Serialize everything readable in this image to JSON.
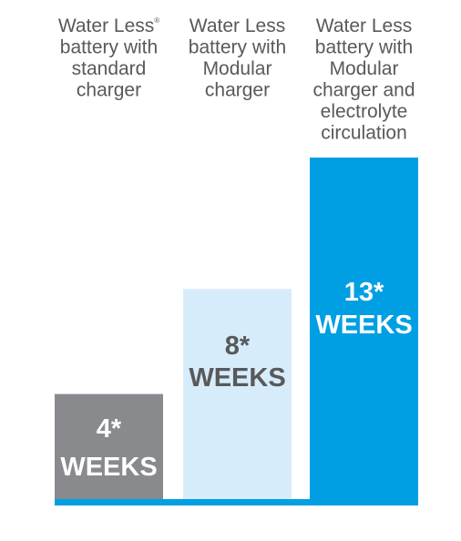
{
  "chart_data": {
    "type": "bar",
    "categories": [
      {
        "lines": [
          "Water Less",
          "battery with",
          "standard",
          "charger"
        ],
        "registered_mark": "®"
      },
      {
        "lines": [
          "Water Less",
          "battery with",
          "Modular",
          "charger"
        ]
      },
      {
        "lines": [
          "Water Less",
          "battery with",
          "Modular",
          "charger and",
          "electrolyte",
          "circulation"
        ]
      }
    ],
    "values": [
      4,
      8,
      13
    ],
    "value_labels": [
      [
        "4*",
        "WEEKS"
      ],
      [
        "8*",
        "WEEKS"
      ],
      [
        "13*",
        "WEEKS"
      ]
    ],
    "unit": "WEEKS",
    "ylim": [
      0,
      13
    ],
    "grid": false,
    "legend": "none",
    "colors": {
      "bars": [
        "#898a8d",
        "#d6ecfa",
        "#009fe3"
      ],
      "value_text": [
        "#ffffff",
        "#58595b",
        "#ffffff"
      ],
      "baseline": "#009fe3",
      "category_text": "#58595b"
    }
  }
}
